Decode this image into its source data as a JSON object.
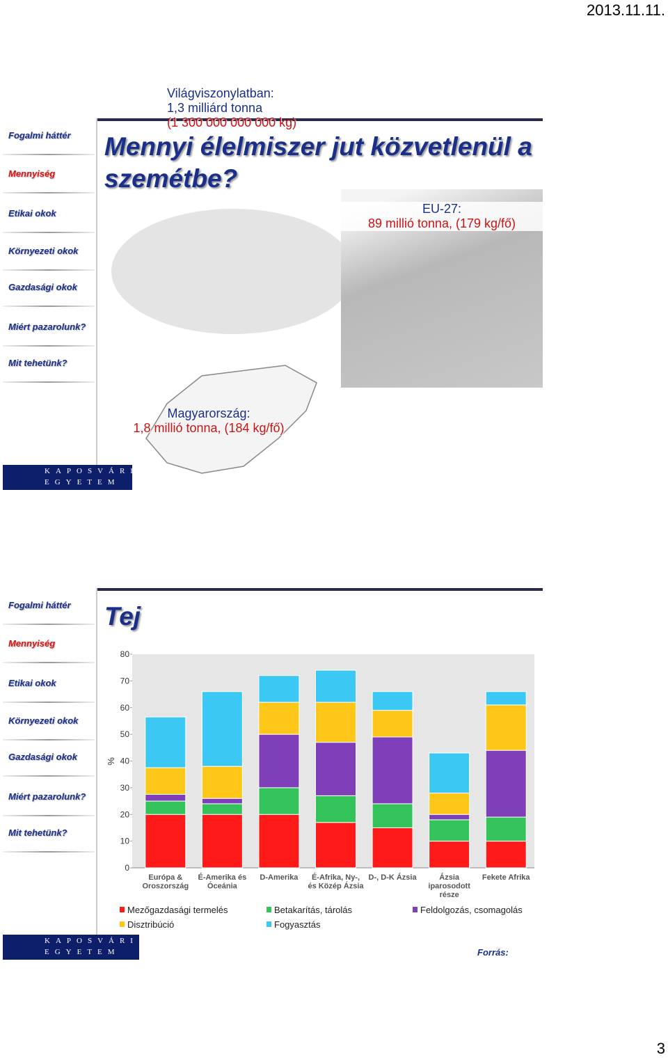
{
  "date": "2013.11.11.",
  "page_number": "3",
  "slides": [
    {
      "sidebar": [
        "Fogalmi háttér",
        "Mennyiség",
        "Etikai okok",
        "Környezeti okok",
        "Gazdasági okok",
        "Miért  pazarolunk?",
        "Mit tehetünk?"
      ],
      "title": "Mennyi élelmiszer jut közvetlenül a szemétbe?",
      "logo": [
        "KAPOSVÁRI",
        "EGYETEM"
      ],
      "world": [
        "Világviszonylatban:",
        "1,3 milliárd tonna",
        "(1 300 000 000 000 kg)"
      ],
      "eu": [
        "EU-27:",
        "89 millió tonna, (179 kg/fő)"
      ],
      "hungary": [
        "Magyarország:",
        "1,8 millió tonna, (184 kg/fő)"
      ]
    },
    {
      "sidebar": [
        "Fogalmi háttér",
        "Mennyiség",
        "Etikai okok",
        "Környezeti okok",
        "Gazdasági okok",
        "Miért  pazarolunk?",
        "Mit tehetünk?"
      ],
      "title": "Tej",
      "logo": [
        "KAPOSVÁRI",
        "EGYETEM"
      ],
      "source": "Forrás:",
      "chart_data": {
        "type": "stacked_bar",
        "ylabel": "%",
        "ylim": [
          0,
          80
        ],
        "yticks": [
          0,
          10,
          20,
          30,
          40,
          50,
          60,
          70,
          80
        ],
        "categories": [
          [
            "Európa &",
            "Oroszország"
          ],
          [
            "É-Amerika és",
            "Óceánia"
          ],
          [
            "D-Amerika"
          ],
          [
            "É-Afrika, Ny-,",
            "és Közép Ázsia"
          ],
          [
            "D-, D-K Ázsia"
          ],
          [
            "Ázsia",
            "iparosodott",
            "része"
          ],
          [
            "Fekete  Afrika"
          ]
        ],
        "series": [
          {
            "name": "Mezőgazdasági termelés",
            "color": "#ff1a1a",
            "values": [
              20,
              20,
              20,
              17,
              15,
              10,
              10
            ]
          },
          {
            "name": "Betakarítás, tárolás",
            "color": "#33c35a",
            "values": [
              5,
              4,
              10,
              10,
              9,
              8,
              9
            ]
          },
          {
            "name": "Feldolgozás, csomagolás",
            "color": "#7f3fb8",
            "values": [
              2.5,
              2,
              20,
              20,
              25,
              2,
              25
            ]
          },
          {
            "name": "Disztribúció",
            "color": "#ffc61a",
            "values": [
              10,
              12,
              12,
              15,
              10,
              8,
              17
            ]
          },
          {
            "name": "Fogyasztás",
            "color": "#3cc8f5",
            "values": [
              19,
              28,
              10,
              12,
              7,
              15,
              5
            ]
          }
        ]
      }
    }
  ]
}
